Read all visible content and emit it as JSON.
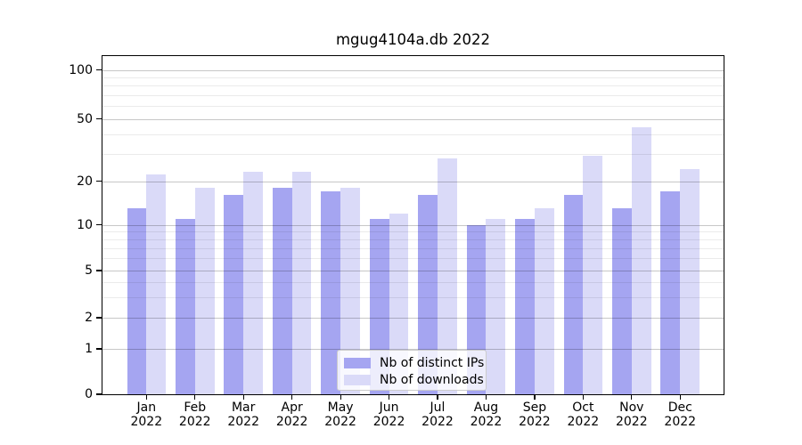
{
  "figure": {
    "title": "mgug4104a.db 2022"
  },
  "chart_data": {
    "type": "bar",
    "title": "mgug4104a.db 2022",
    "categories": [
      "Jan",
      "Feb",
      "Mar",
      "Apr",
      "May",
      "Jun",
      "Jul",
      "Aug",
      "Sep",
      "Oct",
      "Nov",
      "Dec"
    ],
    "year_label": "2022",
    "series": [
      {
        "name": "Nb of distinct IPs",
        "color": "#a5a5f1",
        "values": [
          13,
          11,
          16,
          18,
          17,
          11,
          16,
          10,
          11,
          16,
          13,
          17
        ]
      },
      {
        "name": "Nb of downloads",
        "color": "#dadaf8",
        "values": [
          22,
          18,
          23,
          23,
          18,
          12,
          28,
          11,
          13,
          29,
          44,
          24
        ]
      }
    ],
    "xlabel": "",
    "ylabel": "",
    "yscale": "log-like-with-zero-baseline",
    "ylim": [
      0,
      120
    ],
    "y_major_ticks": [
      0,
      1,
      2,
      5,
      10,
      20,
      50,
      100
    ],
    "y_minor_ticks": [
      3,
      4,
      6,
      7,
      8,
      9,
      30,
      40,
      60,
      70,
      80,
      90
    ],
    "grid": true,
    "legend_position": "lower center"
  },
  "legend": {
    "items": [
      {
        "label": "Nb of distinct IPs",
        "swatch_color": "#a5a5f1"
      },
      {
        "label": "Nb of downloads",
        "swatch_color": "#dadaf8"
      }
    ]
  },
  "colors": {
    "background": "#ffffff",
    "bar_dark": "#a5a5f1",
    "bar_light": "#dadaf8",
    "grid_major": "#c8c8c8",
    "grid_minor": "#ebebeb",
    "spine": "#000000",
    "text": "#000000"
  }
}
